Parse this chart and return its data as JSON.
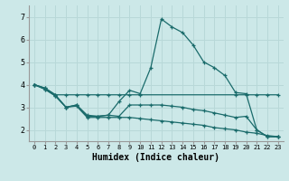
{
  "xlabel": "Humidex (Indice chaleur)",
  "xlim": [
    -0.5,
    23.5
  ],
  "ylim": [
    1.5,
    7.5
  ],
  "yticks": [
    2,
    3,
    4,
    5,
    6,
    7
  ],
  "bg_color": "#cce8e8",
  "grid_color": "#b8d8d8",
  "line_color": "#1a6b6b",
  "line1_x": [
    0,
    1,
    2,
    3,
    4,
    5,
    6,
    7,
    8,
    9,
    10,
    11,
    12,
    13,
    14,
    15,
    16,
    17,
    18,
    19,
    20,
    21,
    22,
    23
  ],
  "line1_y": [
    4.0,
    3.85,
    3.55,
    3.0,
    3.1,
    2.6,
    2.6,
    2.65,
    3.25,
    3.75,
    3.6,
    4.75,
    6.9,
    6.55,
    6.3,
    5.75,
    5.0,
    4.75,
    4.4,
    3.65,
    3.6,
    2.0,
    1.7,
    1.7
  ],
  "line2_x": [
    0,
    1,
    2,
    3,
    4,
    5,
    6,
    7,
    8,
    9,
    10,
    19,
    20,
    21,
    22,
    23
  ],
  "line2_y": [
    4.0,
    3.85,
    3.55,
    3.55,
    3.55,
    3.55,
    3.55,
    3.55,
    3.55,
    3.55,
    3.55,
    3.55,
    3.55,
    3.55,
    3.55,
    3.55
  ],
  "line3_x": [
    0,
    1,
    2,
    3,
    4,
    5,
    6,
    7,
    8,
    9,
    10,
    11,
    12,
    13,
    14,
    15,
    16,
    17,
    18,
    19,
    20,
    21,
    22,
    23
  ],
  "line3_y": [
    4.0,
    3.8,
    3.5,
    3.0,
    3.1,
    2.65,
    2.6,
    2.65,
    2.6,
    3.1,
    3.1,
    3.1,
    3.1,
    3.05,
    3.0,
    2.9,
    2.85,
    2.75,
    2.65,
    2.55,
    2.6,
    2.0,
    1.7,
    1.7
  ],
  "line4_x": [
    0,
    1,
    2,
    3,
    4,
    5,
    6,
    7,
    8,
    9,
    10,
    11,
    12,
    13,
    14,
    15,
    16,
    17,
    18,
    19,
    20,
    21,
    22,
    23
  ],
  "line4_y": [
    4.0,
    3.8,
    3.5,
    3.0,
    3.05,
    2.55,
    2.55,
    2.55,
    2.55,
    2.55,
    2.5,
    2.45,
    2.4,
    2.35,
    2.3,
    2.25,
    2.2,
    2.1,
    2.05,
    2.0,
    1.9,
    1.85,
    1.75,
    1.7
  ]
}
